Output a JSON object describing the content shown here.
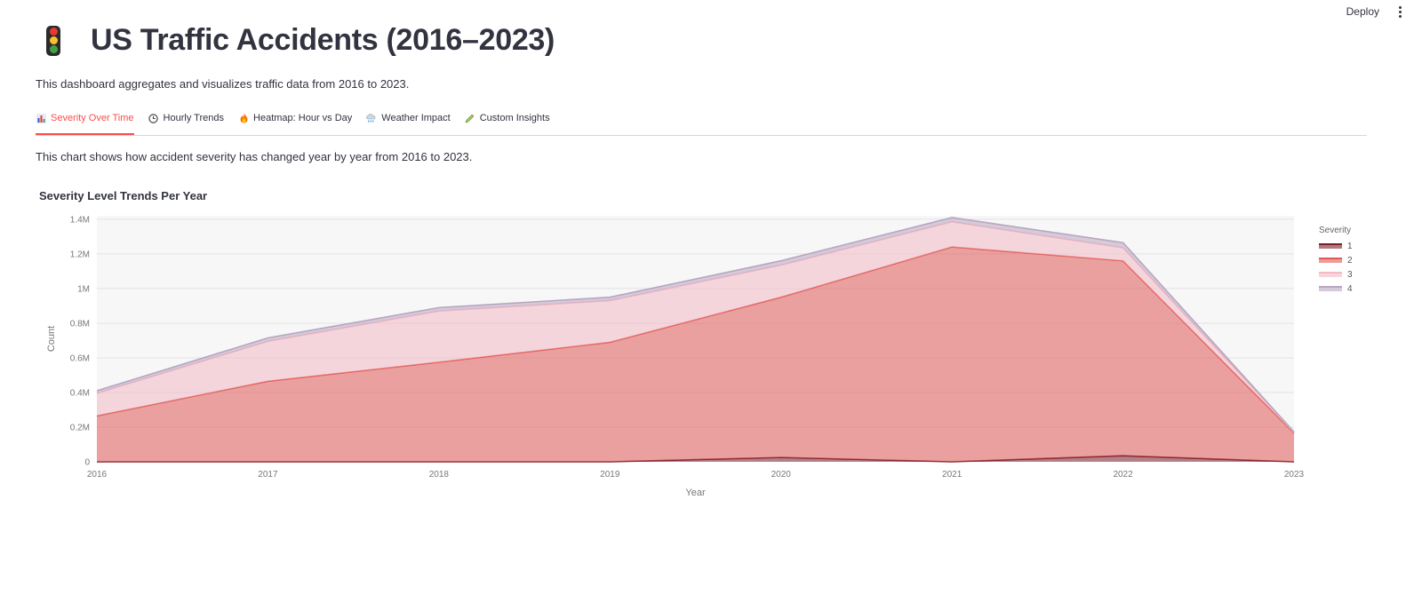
{
  "header": {
    "deploy_label": "Deploy"
  },
  "page": {
    "title": "US Traffic Accidents (2016–2023)",
    "subtitle": "This dashboard aggregates and visualizes traffic data from 2016 to 2023."
  },
  "tabs": [
    {
      "label": "Severity Over Time",
      "icon": "bar-chart-icon"
    },
    {
      "label": "Hourly Trends",
      "icon": "clock-icon"
    },
    {
      "label": "Heatmap: Hour vs Day",
      "icon": "fire-icon"
    },
    {
      "label": "Weather Impact",
      "icon": "rain-cloud-icon"
    },
    {
      "label": "Custom Insights",
      "icon": "pencil-icon"
    }
  ],
  "main": {
    "description": "This chart shows how accident severity has changed year by year from 2016 to 2023."
  },
  "chart_data": {
    "type": "area",
    "stacked": true,
    "title": "Severity Level Trends Per Year",
    "xlabel": "Year",
    "ylabel": "Count",
    "x": [
      2016,
      2017,
      2018,
      2019,
      2020,
      2021,
      2022,
      2023
    ],
    "ylim": [
      0,
      1420000
    ],
    "yticks": [
      0,
      200000,
      400000,
      600000,
      800000,
      1000000,
      1200000,
      1400000
    ],
    "ytick_labels": [
      "0",
      "0.2M",
      "0.4M",
      "0.6M",
      "0.8M",
      "1M",
      "1.2M",
      "1.4M"
    ],
    "legend_title": "Severity",
    "legend_position": "right",
    "grid": true,
    "series": [
      {
        "name": "1",
        "color": "#7b1f2a",
        "values": [
          0,
          0,
          0,
          0,
          25000,
          0,
          35000,
          0
        ]
      },
      {
        "name": "2",
        "color": "#e05a55",
        "values": [
          265000,
          465000,
          575000,
          690000,
          925000,
          1240000,
          1125000,
          165000
        ]
      },
      {
        "name": "3",
        "color": "#f4b9c4",
        "values": [
          130000,
          230000,
          295000,
          240000,
          185000,
          145000,
          75000,
          5000
        ]
      },
      {
        "name": "4",
        "color": "#b8a6c0",
        "values": [
          15000,
          20000,
          20000,
          20000,
          25000,
          25000,
          30000,
          3000
        ]
      }
    ]
  }
}
